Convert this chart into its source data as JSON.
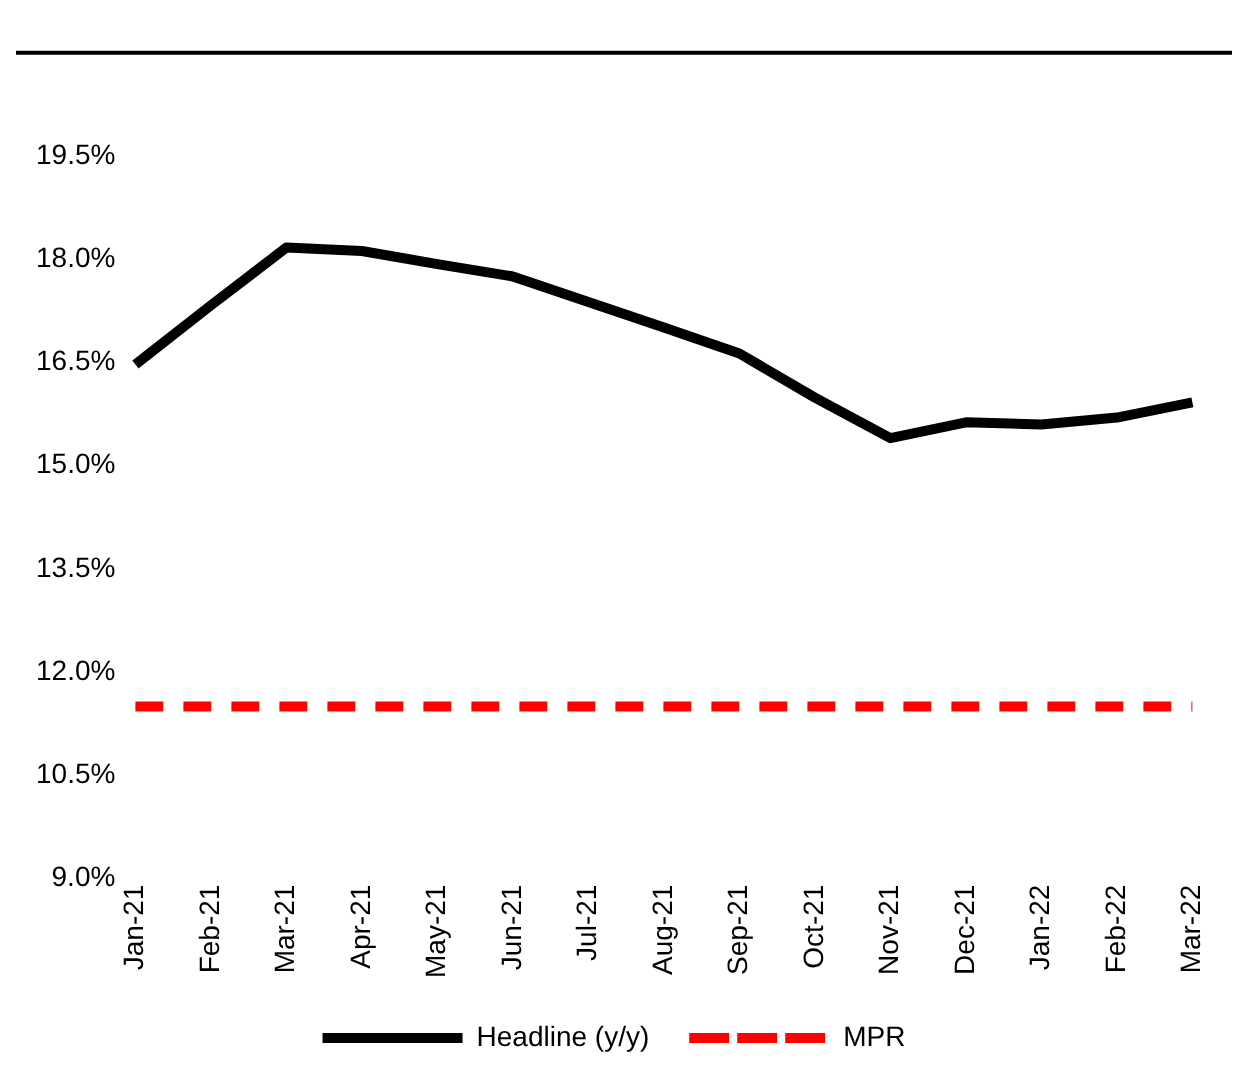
{
  "chart_data": {
    "type": "line",
    "categories": [
      "Jan-21",
      "Feb-21",
      "Mar-21",
      "Apr-21",
      "May-21",
      "Jun-21",
      "Jul-21",
      "Aug-21",
      "Sep-21",
      "Oct-21",
      "Nov-21",
      "Dec-21",
      "Jan-22",
      "Feb-22",
      "Mar-22"
    ],
    "series": [
      {
        "name": "Headline (y/y)",
        "color": "#000000",
        "line_style": "solid",
        "values": [
          16.47,
          17.33,
          18.17,
          18.12,
          17.93,
          17.75,
          17.38,
          17.01,
          16.63,
          15.99,
          15.4,
          15.63,
          15.6,
          15.7,
          15.92
        ]
      },
      {
        "name": "MPR",
        "color": "#ff0000",
        "line_style": "dashed",
        "values": [
          11.5,
          11.5,
          11.5,
          11.5,
          11.5,
          11.5,
          11.5,
          11.5,
          11.5,
          11.5,
          11.5,
          11.5,
          11.5,
          11.5,
          11.5
        ]
      }
    ],
    "ylim": [
      9,
      21
    ],
    "yticks": [
      {
        "value": 9,
        "label": "9.0%"
      },
      {
        "value": 10.5,
        "label": "10.5%"
      },
      {
        "value": 12,
        "label": "12.0%"
      },
      {
        "value": 13.5,
        "label": "13.5%"
      },
      {
        "value": 15,
        "label": "15.0%"
      },
      {
        "value": 16.5,
        "label": "16.5%"
      },
      {
        "value": 18,
        "label": "18.0%"
      },
      {
        "value": 19.5,
        "label": "19.5%"
      }
    ],
    "grid": false,
    "legend": "bottom",
    "marker": "none"
  }
}
